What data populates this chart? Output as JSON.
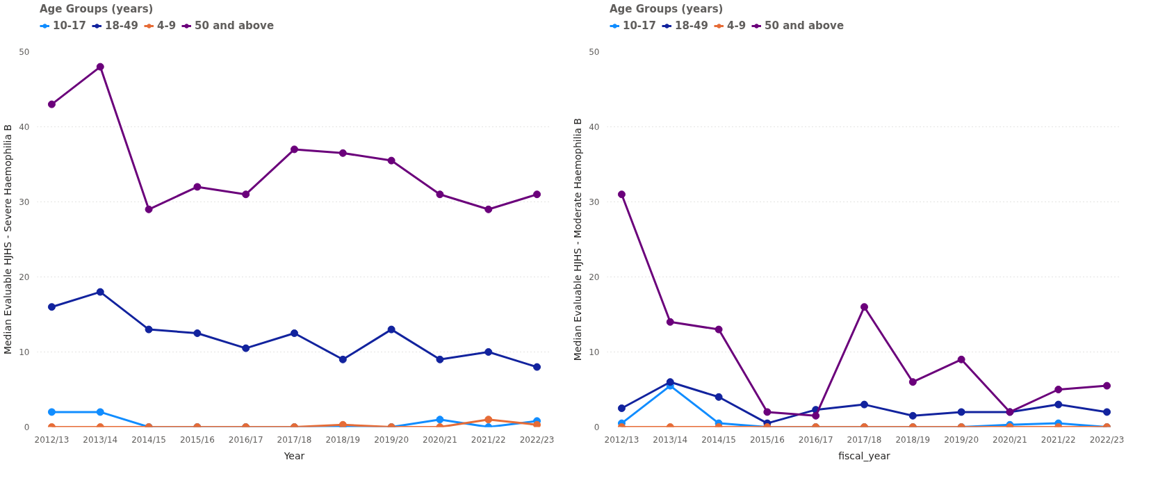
{
  "chart_data": [
    {
      "type": "line",
      "xlabel": "Year",
      "ylabel": "Median Evaluable HJHS - Severe Haemophilia B",
      "legend_title": "Age Groups (years)",
      "legend": "top left",
      "grid": "y",
      "marker": "circle",
      "line_style": "solid",
      "categories": [
        "2012/13",
        "2013/14",
        "2014/15",
        "2015/16",
        "2016/17",
        "2017/18",
        "2018/19",
        "2019/20",
        "2020/21",
        "2021/22",
        "2022/23"
      ],
      "ylim": [
        0,
        50
      ],
      "yticks": [
        0,
        10,
        20,
        30,
        40,
        50
      ],
      "series": [
        {
          "name": "10-17",
          "color": "#118dff",
          "values": [
            2,
            2,
            0,
            0,
            0,
            0,
            0,
            0,
            1,
            0,
            0.8
          ]
        },
        {
          "name": "18-49",
          "color": "#12239e",
          "values": [
            16,
            18,
            13,
            12.5,
            10.5,
            12.5,
            9,
            13,
            9,
            10,
            8
          ]
        },
        {
          "name": "4-9",
          "color": "#e66c37",
          "values": [
            0,
            0,
            0,
            0,
            0,
            0,
            0.3,
            0,
            0,
            1,
            0.3
          ]
        },
        {
          "name": "50 and above",
          "color": "#6b007b",
          "values": [
            43,
            48,
            29,
            32,
            31,
            37,
            36.5,
            35.5,
            31,
            29,
            31
          ]
        }
      ]
    },
    {
      "type": "line",
      "xlabel": "fiscal_year",
      "ylabel": "Median Evaluable HJHS - Moderate Haemophilia B",
      "legend_title": "Age Groups (years)",
      "legend": "top left",
      "grid": "y",
      "marker": "circle",
      "line_style": "solid",
      "categories": [
        "2012/13",
        "2013/14",
        "2014/15",
        "2015/16",
        "2016/17",
        "2017/18",
        "2018/19",
        "2019/20",
        "2020/21",
        "2021/22",
        "2022/23"
      ],
      "ylim": [
        0,
        50
      ],
      "yticks": [
        0,
        10,
        20,
        30,
        40,
        50
      ],
      "series": [
        {
          "name": "10-17",
          "color": "#118dff",
          "values": [
            0.5,
            5.5,
            0.5,
            0,
            0,
            0,
            0,
            0,
            0.3,
            0.5,
            0
          ]
        },
        {
          "name": "18-49",
          "color": "#12239e",
          "values": [
            2.5,
            6,
            4,
            0.5,
            2.3,
            3,
            1.5,
            2,
            2,
            3,
            2
          ]
        },
        {
          "name": "4-9",
          "color": "#e66c37",
          "values": [
            0,
            0,
            0,
            0,
            0,
            0,
            0,
            0,
            0,
            0,
            0
          ]
        },
        {
          "name": "50 and above",
          "color": "#6b007b",
          "values": [
            31,
            14,
            13,
            2,
            1.5,
            16,
            6,
            9,
            2,
            5,
            5.5
          ]
        }
      ]
    }
  ]
}
